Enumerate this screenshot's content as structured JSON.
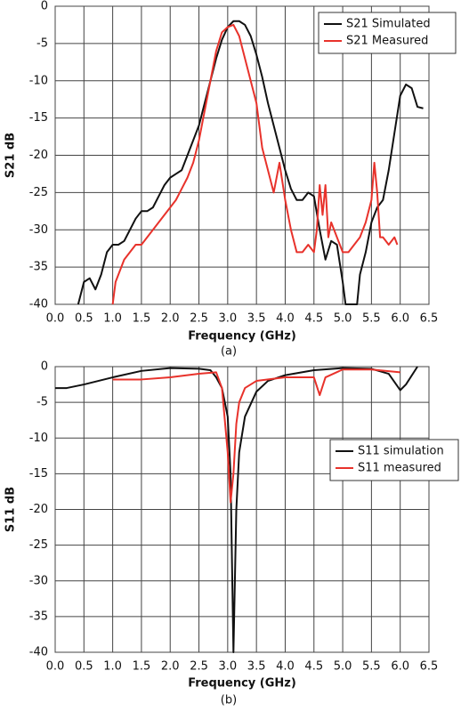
{
  "chart_data": [
    {
      "type": "line",
      "xlabel": "Frequency (GHz)",
      "ylabel": "S21 dB",
      "caption": "(a)",
      "xlim": [
        0,
        6.5
      ],
      "ylim": [
        -40,
        0
      ],
      "xticks": [
        {
          "value": 0,
          "label": "0.0"
        },
        {
          "value": 0.5,
          "label": "0.5"
        },
        {
          "value": 1,
          "label": "1.0"
        },
        {
          "value": 1.5,
          "label": "1.5"
        },
        {
          "value": 2,
          "label": "2.0"
        },
        {
          "value": 2.5,
          "label": "2.5"
        },
        {
          "value": 3,
          "label": "3.0"
        },
        {
          "value": 3.5,
          "label": "3.5"
        },
        {
          "value": 4,
          "label": "4.0"
        },
        {
          "value": 4.5,
          "label": "4.5"
        },
        {
          "value": 5,
          "label": "5.0"
        },
        {
          "value": 5.5,
          "label": "5.5"
        },
        {
          "value": 6,
          "label": "6.0"
        },
        {
          "value": 6.5,
          "label": "6.5"
        }
      ],
      "yticks": [
        0,
        -5,
        -10,
        -15,
        -20,
        -25,
        -30,
        -35,
        -40
      ],
      "grid": true,
      "legend": "upper right",
      "series": [
        {
          "name": "S21 Simulated",
          "color": "#111111",
          "x": [
            0.4,
            0.5,
            0.6,
            0.7,
            0.8,
            0.9,
            1.0,
            1.1,
            1.2,
            1.3,
            1.4,
            1.5,
            1.6,
            1.7,
            1.8,
            1.9,
            2.0,
            2.1,
            2.2,
            2.3,
            2.4,
            2.5,
            2.6,
            2.7,
            2.8,
            2.9,
            3.0,
            3.1,
            3.2,
            3.3,
            3.4,
            3.5,
            3.6,
            3.7,
            3.8,
            3.9,
            4.0,
            4.1,
            4.2,
            4.3,
            4.4,
            4.5,
            4.6,
            4.7,
            4.8,
            4.9,
            5.0,
            5.05,
            5.25,
            5.3,
            5.4,
            5.5,
            5.6,
            5.7,
            5.8,
            5.9,
            6.0,
            6.1,
            6.2,
            6.3,
            6.4
          ],
          "values": [
            -40,
            -37,
            -36.5,
            -38,
            -36,
            -33,
            -32,
            -32,
            -31.5,
            -30,
            -28.5,
            -27.5,
            -27.5,
            -27,
            -25.5,
            -24,
            -23,
            -22.5,
            -22,
            -20,
            -18,
            -16,
            -13,
            -10,
            -7,
            -4.5,
            -2.8,
            -2,
            -2,
            -2.5,
            -4,
            -6.5,
            -9.5,
            -13,
            -16,
            -19,
            -22,
            -24.5,
            -26,
            -26,
            -25,
            -25.5,
            -30,
            -34,
            -31.5,
            -32,
            -37,
            -40,
            -40,
            -36,
            -33,
            -29,
            -27,
            -26,
            -22,
            -17,
            -12,
            -10.5,
            -11,
            -13.5,
            -13.7
          ]
        },
        {
          "name": "S21 Measured",
          "color": "#e8322b",
          "x": [
            1.0,
            1.05,
            1.1,
            1.2,
            1.3,
            1.4,
            1.5,
            1.6,
            1.7,
            1.8,
            1.9,
            2.0,
            2.1,
            2.2,
            2.3,
            2.4,
            2.5,
            2.6,
            2.7,
            2.8,
            2.9,
            3.0,
            3.1,
            3.2,
            3.3,
            3.4,
            3.5,
            3.6,
            3.7,
            3.8,
            3.9,
            4.0,
            4.1,
            4.2,
            4.3,
            4.4,
            4.5,
            4.55,
            4.6,
            4.65,
            4.7,
            4.75,
            4.8,
            4.9,
            5.0,
            5.1,
            5.2,
            5.3,
            5.4,
            5.5,
            5.55,
            5.6,
            5.65,
            5.7,
            5.8,
            5.9,
            5.95
          ],
          "values": [
            -40,
            -37,
            -36,
            -34,
            -33,
            -32,
            -32,
            -31,
            -30,
            -29,
            -28,
            -27,
            -26,
            -24.5,
            -23,
            -21,
            -18,
            -14,
            -10,
            -6,
            -3.5,
            -2.8,
            -2.5,
            -4,
            -7,
            -10,
            -13,
            -19,
            -22,
            -25,
            -21,
            -26,
            -30,
            -33,
            -33,
            -32,
            -33,
            -30,
            -24,
            -28,
            -24,
            -31,
            -29,
            -31,
            -33,
            -33,
            -32,
            -31,
            -29,
            -26,
            -21,
            -25,
            -31,
            -31,
            -32,
            -31,
            -32
          ]
        }
      ]
    },
    {
      "type": "line",
      "xlabel": "Frequency (GHz)",
      "ylabel": "S11 dB",
      "caption": "(b)",
      "xlim": [
        0,
        6.5
      ],
      "ylim": [
        -40,
        0
      ],
      "xticks": [
        {
          "value": 0,
          "label": "0.0"
        },
        {
          "value": 0.5,
          "label": "0.5"
        },
        {
          "value": 1,
          "label": "1.0"
        },
        {
          "value": 1.5,
          "label": "1.5"
        },
        {
          "value": 2,
          "label": "2.0"
        },
        {
          "value": 2.5,
          "label": "2.5"
        },
        {
          "value": 3,
          "label": "3.0"
        },
        {
          "value": 3.5,
          "label": "3.5"
        },
        {
          "value": 4,
          "label": "4.0"
        },
        {
          "value": 4.5,
          "label": "4.5"
        },
        {
          "value": 5,
          "label": "5.0"
        },
        {
          "value": 5.5,
          "label": "5.5"
        },
        {
          "value": 6,
          "label": "6.0"
        },
        {
          "value": 6.5,
          "label": "6.5"
        }
      ],
      "yticks": [
        0,
        -5,
        -10,
        -15,
        -20,
        -25,
        -30,
        -35,
        -40
      ],
      "grid": true,
      "legend": "center right",
      "series": [
        {
          "name": "S11 simulation",
          "color": "#111111",
          "x": [
            0,
            0.2,
            0.5,
            1.0,
            1.5,
            2.0,
            2.5,
            2.7,
            2.8,
            2.9,
            3.0,
            3.05,
            3.1,
            3.15,
            3.2,
            3.3,
            3.5,
            3.7,
            4.0,
            4.5,
            5.0,
            5.5,
            5.8,
            6.0,
            6.1,
            6.3
          ],
          "values": [
            -3,
            -3,
            -2.5,
            -1.5,
            -0.6,
            -0.2,
            -0.3,
            -0.5,
            -1.5,
            -3,
            -7,
            -15,
            -40,
            -20,
            -12,
            -7,
            -3.5,
            -2,
            -1.2,
            -0.5,
            -0.2,
            -0.3,
            -1,
            -3.3,
            -2.5,
            0
          ]
        },
        {
          "name": "S11 measured",
          "color": "#e8322b",
          "x": [
            1.0,
            1.5,
            2.0,
            2.5,
            2.8,
            2.9,
            3.0,
            3.05,
            3.1,
            3.15,
            3.2,
            3.3,
            3.5,
            4.0,
            4.5,
            4.6,
            4.7,
            5.0,
            5.5,
            6.0
          ],
          "values": [
            -1.8,
            -1.8,
            -1.5,
            -1,
            -0.8,
            -3,
            -12,
            -19,
            -15,
            -8,
            -5,
            -3,
            -2,
            -1.5,
            -1.5,
            -4,
            -1.5,
            -0.4,
            -0.4,
            -0.8
          ]
        }
      ]
    }
  ]
}
